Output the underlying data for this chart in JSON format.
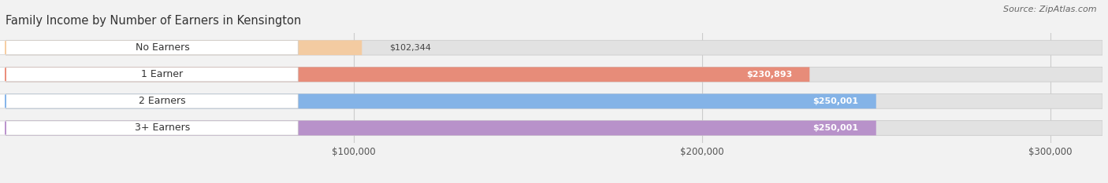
{
  "title": "Family Income by Number of Earners in Kensington",
  "source": "Source: ZipAtlas.com",
  "categories": [
    "No Earners",
    "1 Earner",
    "2 Earners",
    "3+ Earners"
  ],
  "values": [
    102344,
    230893,
    250001,
    250001
  ],
  "bar_colors": [
    "#f5c99a",
    "#e8836e",
    "#7aaee8",
    "#b489c8"
  ],
  "value_labels": [
    "$102,344",
    "$230,893",
    "$250,001",
    "$250,001"
  ],
  "xmin": 0,
  "xmax": 315000,
  "xticks": [
    100000,
    200000,
    300000
  ],
  "xticklabels": [
    "$100,000",
    "$200,000",
    "$300,000"
  ],
  "bg_color": "#f2f2f2",
  "bar_track_color": "#e2e2e2",
  "title_fontsize": 10.5,
  "source_fontsize": 8,
  "label_fontsize": 9,
  "value_fontsize": 8,
  "value_text_colors": [
    "#555555",
    "#ffffff",
    "#ffffff",
    "#ffffff"
  ],
  "value_inside": [
    false,
    true,
    true,
    true
  ]
}
